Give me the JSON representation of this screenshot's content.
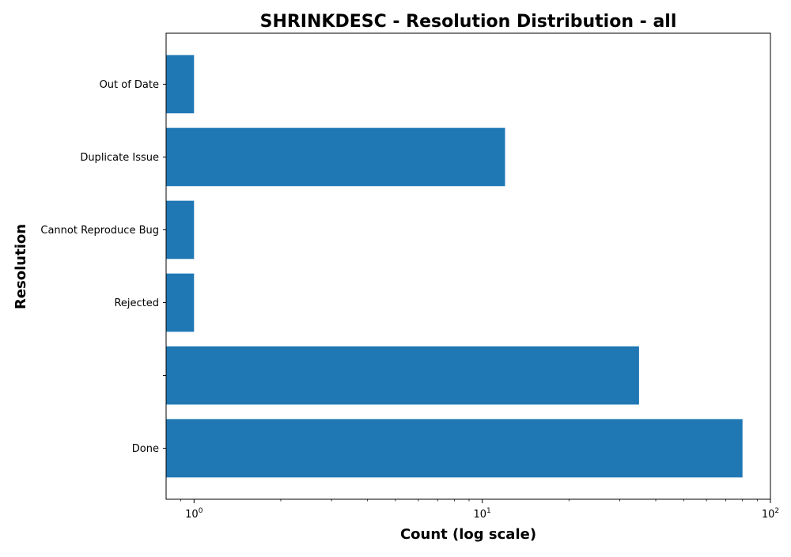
{
  "chart_data": {
    "type": "bar",
    "orientation": "horizontal",
    "title": "SHRINKDESC - Resolution Distribution - all",
    "xlabel": "Count (log scale)",
    "ylabel": "Resolution",
    "x_scale": "log",
    "xlim": [
      0.8,
      100
    ],
    "x_ticks": [
      {
        "value": 1,
        "base": "10",
        "exp": "0"
      },
      {
        "value": 10,
        "base": "10",
        "exp": "1"
      },
      {
        "value": 100,
        "base": "10",
        "exp": "2"
      }
    ],
    "categories": [
      "Done",
      "",
      "Rejected",
      "Cannot Reproduce Bug",
      "Duplicate Issue",
      "Out of Date"
    ],
    "values": [
      80,
      35,
      1,
      1,
      12,
      1
    ],
    "grid": false,
    "bar_color": "#1f77b4"
  }
}
